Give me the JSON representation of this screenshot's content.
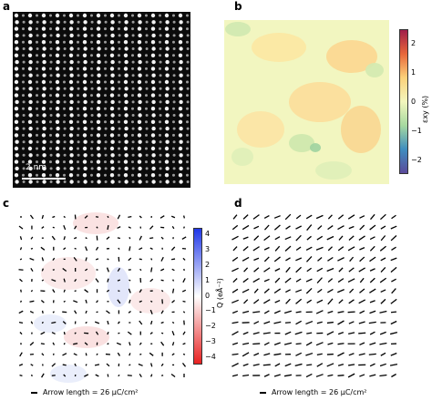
{
  "panels": {
    "a": {
      "letter": "a",
      "scale_bar": "2 nm"
    },
    "b": {
      "letter": "b",
      "colorbar": {
        "label": "εxy (%)",
        "ticks": [
          "2",
          "1",
          "0",
          "−1",
          "−2"
        ],
        "colors": [
          "#a01e4a",
          "#e8673a",
          "#fbd17a",
          "#f3f6bd",
          "#a6d9a0",
          "#3f8dbf",
          "#5b4a9b"
        ]
      }
    },
    "c": {
      "letter": "c",
      "colorbar": {
        "label": "Q (eÅ⁻²)",
        "ticks": [
          "4",
          "3",
          "2",
          "1",
          "0",
          "−1",
          "−2",
          "−3",
          "−4"
        ],
        "colors": [
          "#2038e8",
          "#ffffff",
          "#e82020"
        ]
      },
      "legend": "Arrow length = 26 μC/cm²"
    },
    "d": {
      "letter": "d",
      "legend": "Arrow length = 26 μC/cm²"
    }
  }
}
